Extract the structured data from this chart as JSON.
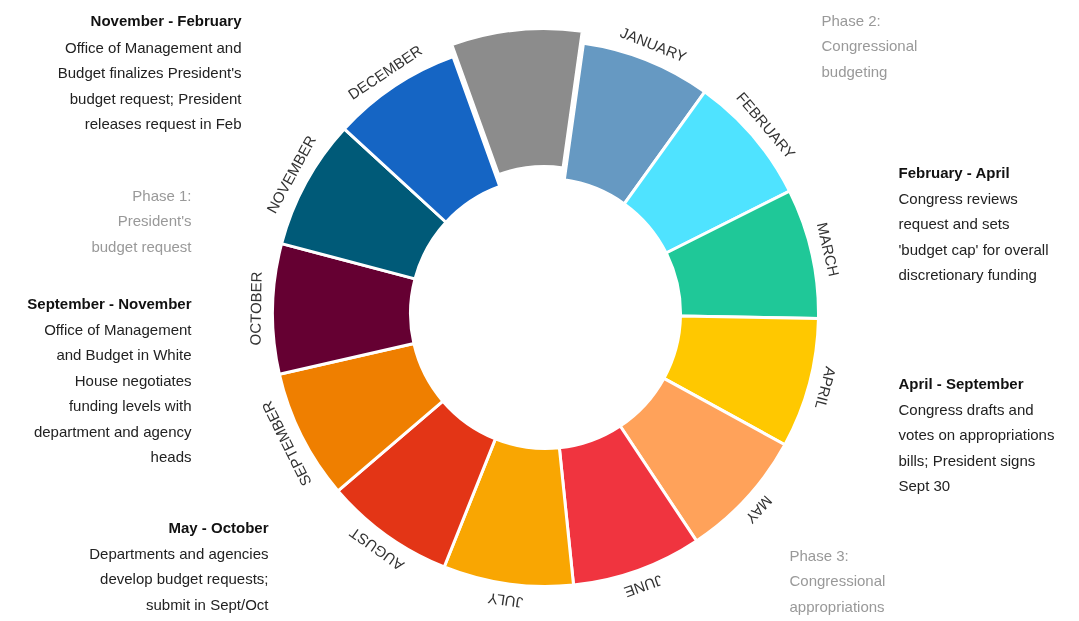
{
  "chart_data": {
    "type": "donut",
    "categories": [
      "JANUARY",
      "FEBRUARY",
      "MARCH",
      "APRIL",
      "MAY",
      "JUNE",
      "JULY",
      "AUGUST",
      "SEPTEMBER",
      "OCTOBER",
      "NOVEMBER",
      "DECEMBER",
      null
    ],
    "values": [
      7.69,
      7.69,
      7.69,
      7.69,
      7.69,
      7.69,
      7.69,
      7.69,
      7.69,
      7.69,
      7.69,
      7.69,
      7.72
    ],
    "colors": [
      "#6699c2",
      "#4fe3ff",
      "#1fc898",
      "#ffc800",
      "#ffa25a",
      "#f0343f",
      "#f9a602",
      "#e33516",
      "#ef7f00",
      "#650032",
      "#005a78",
      "#1565c4",
      "#8c8c8c"
    ],
    "annotations": [
      "November - February",
      "Office of Management and\nBudget finalizes President's\nbudget request; President\nreleases request in Feb",
      "Phase 1:\nPresident's\nbudget request",
      "September - November",
      "Office of Management\nand Budget in White\nHouse negotiates\nfunding levels with\ndepartment and agency\nheads",
      "May - October",
      "Departments and agencies\ndevelop budget requests;\nsubmit in Sept/Oct",
      "Phase 2:\nCongressional\nbudgeting",
      "February - April",
      "Congress reviews\nrequest and sets\n'budget cap' for overall\ndiscretionary funding",
      "April - September",
      "Congress drafts and\nvotes on appropriations\nbills; President signs\nSept 30",
      "Phase 3:\nCongressional\nappropriations"
    ]
  }
}
